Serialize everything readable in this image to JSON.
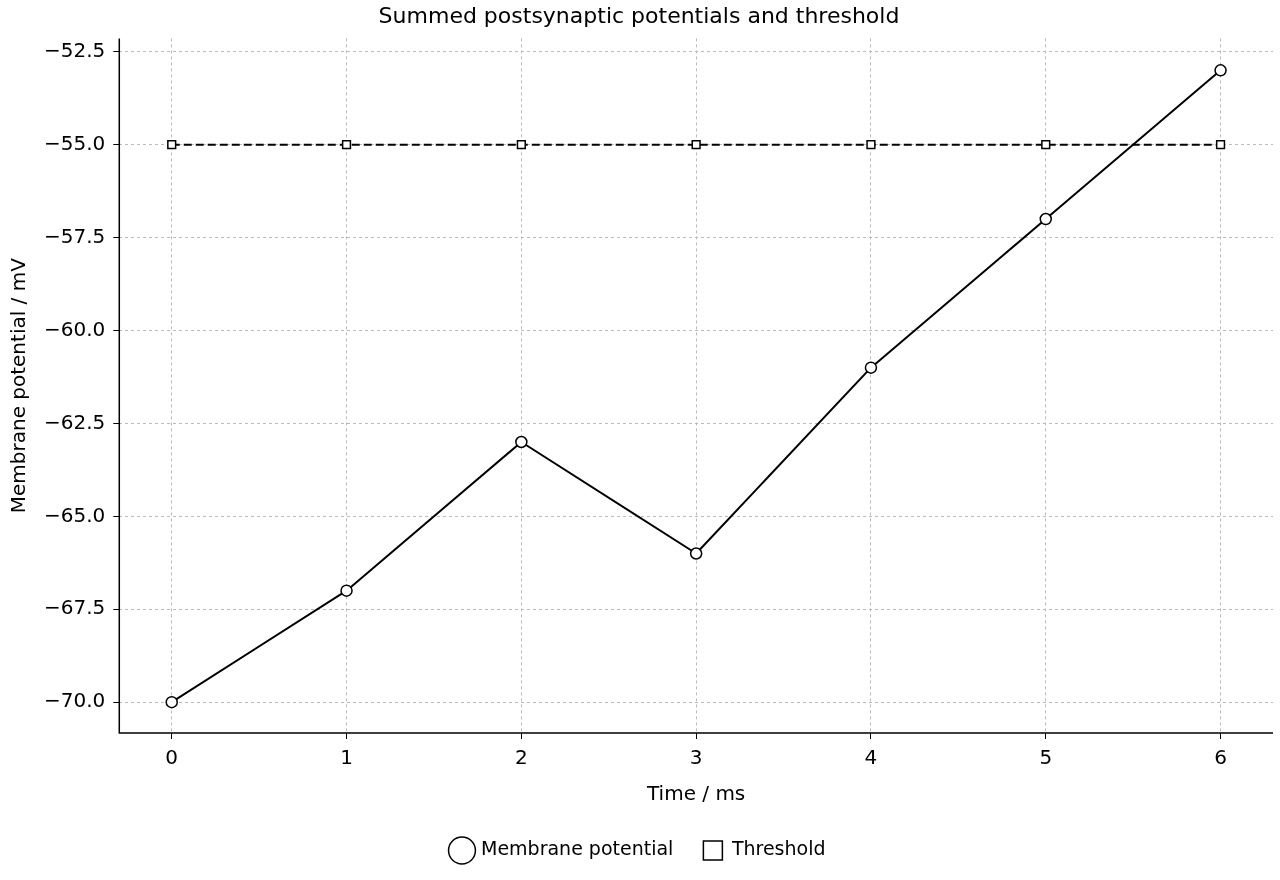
{
  "chart_data": {
    "type": "line",
    "title": "Summed postsynaptic potentials and threshold",
    "xlabel": "Time / ms",
    "ylabel": "Membrane potential / mV",
    "x": [
      0,
      1,
      2,
      3,
      4,
      5,
      6
    ],
    "series": [
      {
        "name": "Membrane potential",
        "color": "#000000",
        "values": [
          -70,
          -67,
          -63,
          -66,
          -61,
          -57,
          -53
        ],
        "marker": "circle",
        "line_style": "solid"
      },
      {
        "name": "Threshold",
        "color": "#000000",
        "values": [
          -55,
          -55,
          -55,
          -55,
          -55,
          -55,
          -55
        ],
        "marker": "square",
        "line_style": "dashed"
      }
    ],
    "xlim": [
      -0.3,
      6.3
    ],
    "xticks": [
      0,
      1,
      2,
      3,
      4,
      5,
      6
    ],
    "ylim": [
      -70.83,
      -52.14
    ],
    "yticks": [
      {
        "value": -70,
        "label": "−70.0"
      },
      {
        "value": -67.5,
        "label": "−67.5"
      },
      {
        "value": -65,
        "label": "−65.0"
      },
      {
        "value": -62.5,
        "label": "−62.5"
      },
      {
        "value": -60,
        "label": "−60.0"
      },
      {
        "value": -57.5,
        "label": "−57.5"
      },
      {
        "value": -55,
        "label": "−55.0"
      },
      {
        "value": -52.5,
        "label": "−52.5"
      }
    ],
    "grid": true,
    "legend": "bottom"
  }
}
